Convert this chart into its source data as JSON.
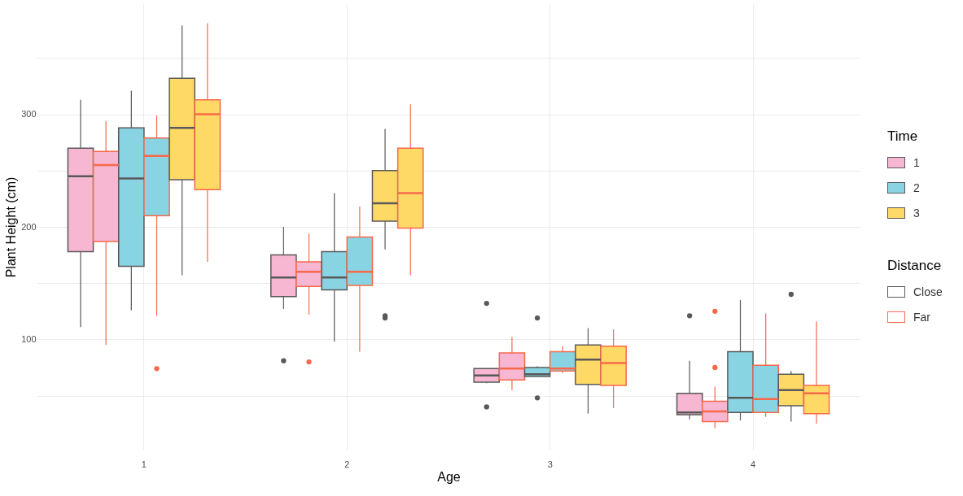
{
  "chart_data": {
    "type": "box",
    "xlabel": "Age",
    "ylabel": "Plant Height (cm)",
    "categories": [
      "1",
      "2",
      "3",
      "4"
    ],
    "ylim": [
      2,
      398
    ],
    "yticks": [
      {
        "value": 50,
        "label": null
      },
      100,
      {
        "value": 150,
        "label": null
      },
      200,
      {
        "value": 250,
        "label": null
      },
      300,
      {
        "value": 350,
        "label": null
      }
    ],
    "grid": true,
    "legend": "right",
    "legend_title": "Time",
    "annotations": [
      "Distance",
      "Close",
      "Far"
    ],
    "series": [
      {
        "name": "1",
        "color": "#f7b6d2",
        "boxes": [
          {
            "low": 111,
            "q1": 178,
            "median": 245,
            "q3": 270,
            "high": 313
          },
          {
            "low": 127,
            "q1": 138,
            "median": 155,
            "q3": 175,
            "high": 200,
            "outliers": [
              81
            ]
          },
          {
            "low": 61,
            "q1": 62,
            "median": 68,
            "q3": 74,
            "high": 74,
            "outliers": [
              132,
              40
            ]
          },
          {
            "low": 29,
            "q1": 33,
            "median": 35,
            "q3": 52,
            "high": 81,
            "outliers": [
              121
            ]
          }
        ]
      },
      {
        "color": "#f7b6d2",
        "boxes": [
          {
            "low": 95,
            "q1": 187,
            "median": 255,
            "q3": 267,
            "high": 294
          },
          {
            "low": 122,
            "q1": 147,
            "median": 160,
            "q3": 169,
            "high": 194,
            "outliers": [
              80
            ]
          },
          {
            "low": 55,
            "q1": 64,
            "median": 74,
            "q3": 88,
            "high": 102
          },
          {
            "low": 21,
            "q1": 27,
            "median": 36,
            "q3": 45,
            "high": 58,
            "outliers": [
              125,
              75
            ]
          }
        ]
      },
      {
        "name": "2",
        "color": "#89d4e3",
        "boxes": [
          {
            "low": 126,
            "q1": 165,
            "median": 243,
            "q3": 288,
            "high": 321
          },
          {
            "low": 98,
            "q1": 144,
            "median": 155,
            "q3": 178,
            "high": 230
          },
          {
            "low": 67,
            "q1": 67,
            "median": 69,
            "q3": 75,
            "high": 76,
            "outliers": [
              119,
              48
            ]
          },
          {
            "low": 28,
            "q1": 35,
            "median": 48,
            "q3": 89,
            "high": 135
          }
        ]
      },
      {
        "color": "#89d4e3",
        "boxes": [
          {
            "low": 121,
            "q1": 210,
            "median": 263,
            "q3": 279,
            "high": 299,
            "outliers": [
              74
            ]
          },
          {
            "low": 89,
            "q1": 148,
            "median": 160,
            "q3": 191,
            "high": 218
          },
          {
            "low": 70,
            "q1": 72,
            "median": 74,
            "q3": 89,
            "high": 94
          },
          {
            "low": 31,
            "q1": 35,
            "median": 47,
            "q3": 77,
            "high": 123
          }
        ]
      },
      {
        "name": "3",
        "color": "#ffd966",
        "boxes": [
          {
            "low": 157,
            "q1": 242,
            "median": 288,
            "q3": 332,
            "high": 379
          },
          {
            "low": 180,
            "q1": 205,
            "median": 221,
            "q3": 250,
            "high": 287,
            "outliers": [
              121,
              119
            ]
          },
          {
            "low": 34,
            "q1": 60,
            "median": 82,
            "q3": 95,
            "high": 110
          },
          {
            "low": 27,
            "q1": 41,
            "median": 55,
            "q3": 69,
            "high": 72,
            "outliers": [
              140
            ]
          }
        ]
      },
      {
        "color": "#ffd966",
        "boxes": [
          {
            "low": 169,
            "q1": 233,
            "median": 300,
            "q3": 313,
            "high": 381
          },
          {
            "low": 157,
            "q1": 199,
            "median": 230,
            "q3": 270,
            "high": 309
          },
          {
            "low": 39,
            "q1": 59,
            "median": 79,
            "q3": 94,
            "high": 109
          },
          {
            "low": 25,
            "q1": 34,
            "median": 52,
            "q3": 59,
            "high": 116
          }
        ]
      }
    ]
  }
}
